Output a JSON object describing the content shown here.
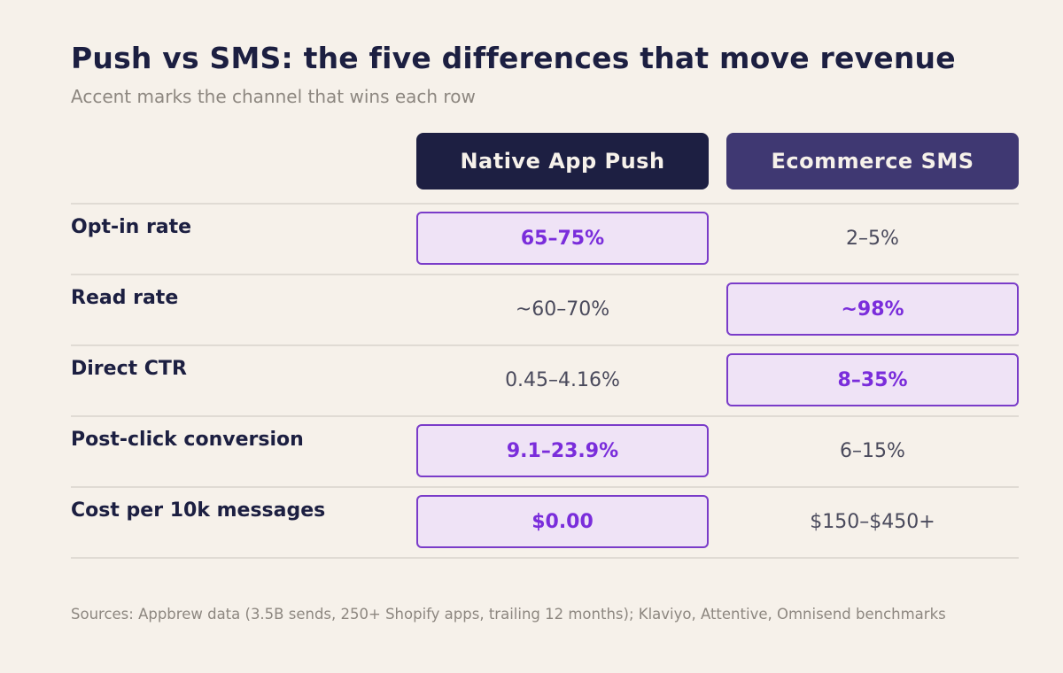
{
  "title": "Push vs SMS: the five differences that move revenue",
  "subtitle": "Accent marks the channel that wins each row",
  "columns": {
    "push": "Native App Push",
    "sms": "Ecommerce SMS"
  },
  "colors": {
    "background": "#f6f1ea",
    "push_header": "#1d1f42",
    "sms_header": "#3f3872",
    "accent": "#7a2ddb",
    "accent_fill": "#efe3f6"
  },
  "chart_data": {
    "type": "table",
    "title": "Push vs SMS: the five differences that move revenue",
    "subtitle": "Accent marks the channel that wins each row",
    "columns": [
      "Native App Push",
      "Ecommerce SMS"
    ],
    "rows": [
      {
        "label": "Opt-in rate",
        "push": "65–75%",
        "sms": "2–5%",
        "winner": "push"
      },
      {
        "label": "Read rate",
        "push": "~60–70%",
        "sms": "~98%",
        "winner": "sms"
      },
      {
        "label": "Direct CTR",
        "push": "0.45–4.16%",
        "sms": "8–35%",
        "winner": "sms"
      },
      {
        "label": "Post-click conversion",
        "push": "9.1–23.9%",
        "sms": "6–15%",
        "winner": "push"
      },
      {
        "label": "Cost per 10k messages",
        "push": "$0.00",
        "sms": "$150–$450+",
        "winner": "push"
      }
    ]
  },
  "sources": "Sources: Appbrew data (3.5B sends, 250+ Shopify apps, trailing 12 months); Klaviyo, Attentive, Omnisend benchmarks"
}
